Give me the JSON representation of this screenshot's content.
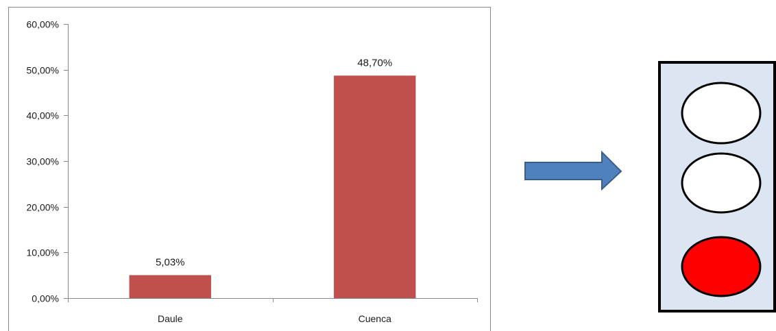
{
  "chart_data": {
    "type": "bar",
    "categories": [
      "Daule",
      "Cuenca"
    ],
    "values": [
      5.03,
      48.7
    ],
    "data_labels": [
      "5,03%",
      "48,70%"
    ],
    "title": "",
    "xlabel": "",
    "ylabel": "",
    "ylim": [
      0,
      60
    ],
    "y_ticks": [
      0,
      10,
      20,
      30,
      40,
      50,
      60
    ],
    "y_tick_labels": [
      "0,00%",
      "10,00%",
      "20,00%",
      "30,00%",
      "40,00%",
      "50,00%",
      "60,00%"
    ],
    "bar_color": "#c0504d",
    "grid": false,
    "legend": "none"
  },
  "arrow": {
    "fill_color": "#4f81bd",
    "stroke_color": "#385d8a",
    "icon": "right-arrow-icon"
  },
  "traffic_light": {
    "panel_color": "#dce6f2",
    "lights": [
      {
        "name": "top-light",
        "state": "off",
        "color": "#ffffff"
      },
      {
        "name": "middle-light",
        "state": "off",
        "color": "#ffffff"
      },
      {
        "name": "bottom-light",
        "state": "on",
        "color": "#ff0000"
      }
    ]
  }
}
